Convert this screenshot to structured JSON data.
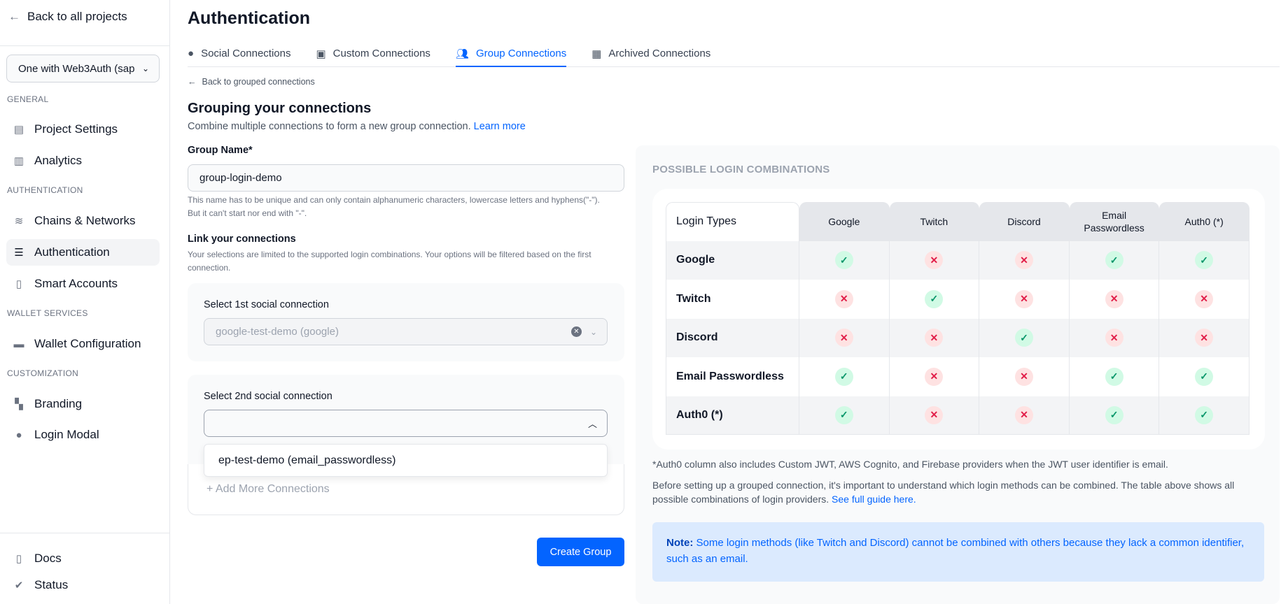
{
  "sidebar": {
    "back": "Back to all projects",
    "project": "One with Web3Auth (sap",
    "sections": {
      "general": "GENERAL",
      "authentication": "AUTHENTICATION",
      "wallet": "WALLET SERVICES",
      "customization": "CUSTOMIZATION"
    },
    "items": {
      "project_settings": "Project Settings",
      "analytics": "Analytics",
      "chains": "Chains & Networks",
      "authentication": "Authentication",
      "smart_accounts": "Smart Accounts",
      "wallet_config": "Wallet Configuration",
      "branding": "Branding",
      "login_modal": "Login Modal",
      "docs": "Docs",
      "status": "Status"
    }
  },
  "header": {
    "title": "Authentication"
  },
  "tabs": [
    "Social Connections",
    "Custom Connections",
    "Group Connections",
    "Archived Connections"
  ],
  "form": {
    "back": "Back to grouped connections",
    "heading": "Grouping your connections",
    "subtitle": "Combine multiple connections to form a new group connection.",
    "learn_more": "Learn more",
    "group_name_label": "Group Name*",
    "group_name_value": "group-login-demo",
    "group_name_help1": "This name has to be unique and can only contain alphanumeric characters, lowercase letters and hyphens(\"-\").",
    "group_name_help2": "But it can't start nor end with \"-\".",
    "link_label": "Link your connections",
    "link_help": "Your selections are limited to the supported login combinations. Your options will be filtered based on the first connection.",
    "first_label": "Select 1st social connection",
    "first_value": "google-test-demo (google)",
    "second_label": "Select 2nd social connection",
    "second_value": "",
    "dropdown_option": "ep-test-demo (email_passwordless)",
    "add_more": "+ Add More Connections",
    "create": "Create Group"
  },
  "combinations": {
    "title": "POSSIBLE LOGIN COMBINATIONS",
    "corner": "Login Types",
    "columns": [
      "Google",
      "Twitch",
      "Discord",
      "Email Passwordless",
      "Auth0 (*)"
    ],
    "rows": [
      {
        "label": "Google",
        "values": [
          true,
          false,
          false,
          true,
          true
        ]
      },
      {
        "label": "Twitch",
        "values": [
          false,
          true,
          false,
          false,
          false
        ]
      },
      {
        "label": "Discord",
        "values": [
          false,
          false,
          true,
          false,
          false
        ]
      },
      {
        "label": "Email Passwordless",
        "values": [
          true,
          false,
          false,
          true,
          true
        ]
      },
      {
        "label": "Auth0 (*)",
        "values": [
          true,
          false,
          false,
          true,
          true
        ]
      }
    ],
    "footnote": "*Auth0 column also includes Custom JWT, AWS Cognito, and Firebase providers when the JWT user identifier is email.",
    "paragraph": "Before setting up a grouped connection, it's important to understand which login methods can be combined. The table above shows all possible combinations of login providers.",
    "guide_link": "See full guide here.",
    "note_label": "Note:",
    "note_text": " Some login methods (like Twitch and Discord) cannot be combined with others because they lack a common identifier, such as an email."
  },
  "colors": {
    "accent": "#0364ff",
    "yes": "#059669",
    "no": "#e11d48"
  }
}
